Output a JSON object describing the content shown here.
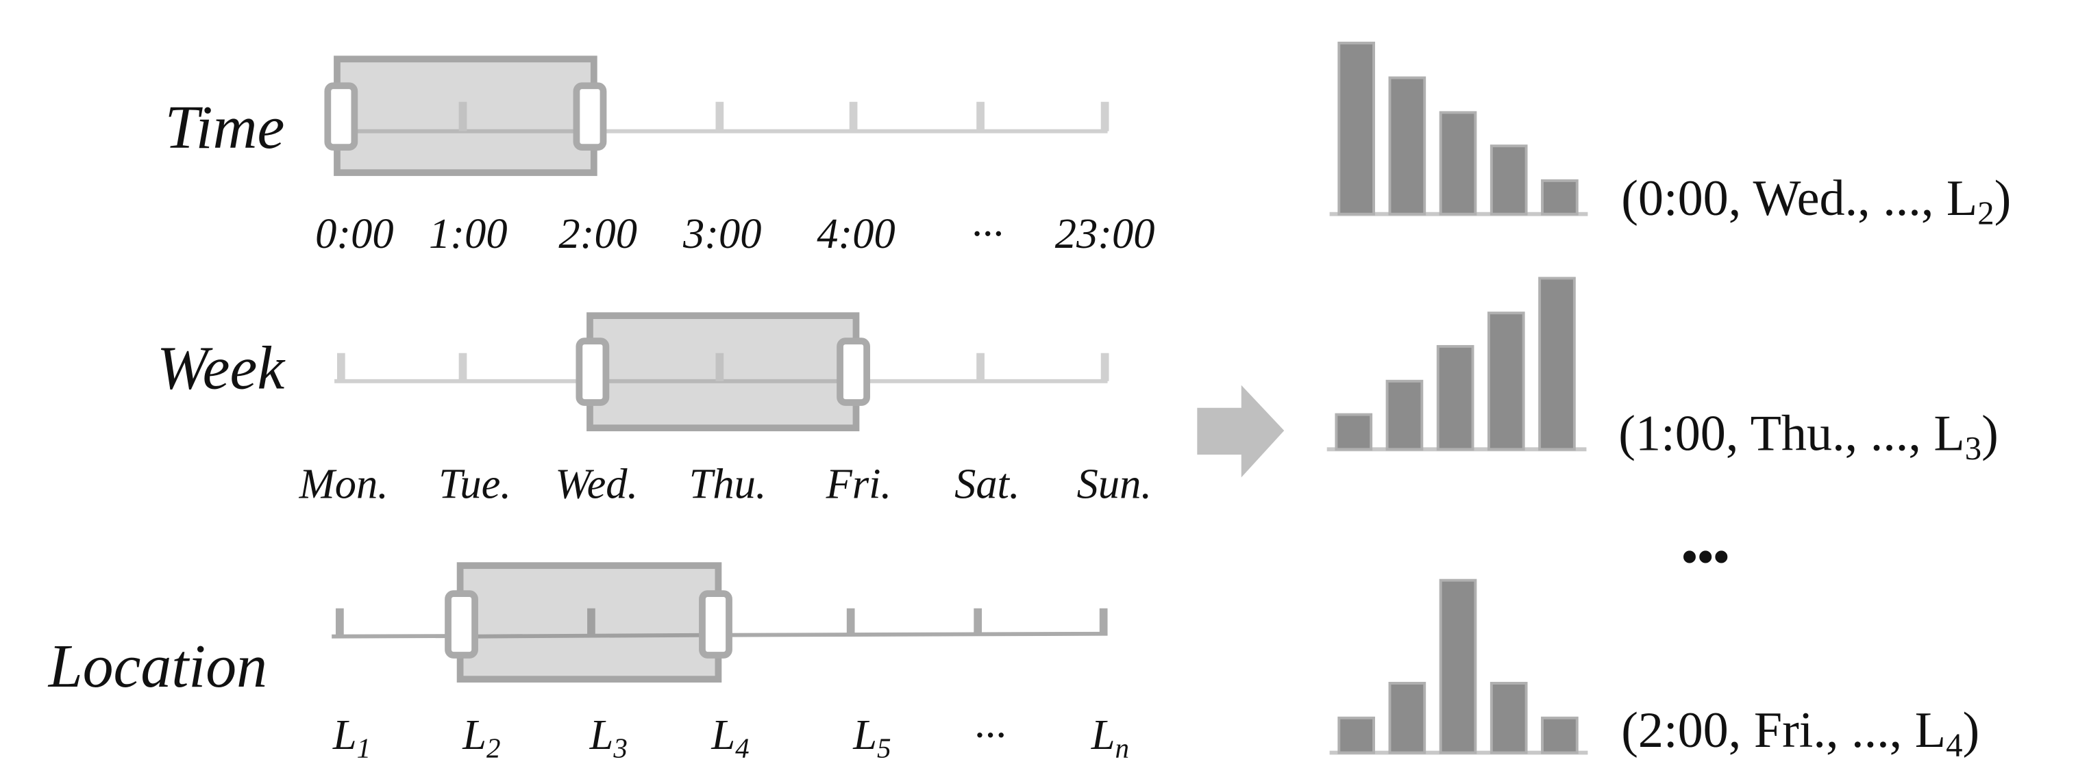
{
  "rows": [
    {
      "label": "Time",
      "ticks": [
        "0:00",
        "1:00",
        "2:00",
        "3:00",
        "4:00",
        "···",
        "23:00"
      ]
    },
    {
      "label": "Week",
      "ticks": [
        "Mon.",
        "Tue.",
        "Wed.",
        "Thu.",
        "Fri.",
        "Sat.",
        "Sun."
      ]
    },
    {
      "label": "Location",
      "ticks": [
        {
          "base": "L",
          "sub": "1"
        },
        {
          "base": "L",
          "sub": "2"
        },
        {
          "base": "L",
          "sub": "3"
        },
        {
          "base": "L",
          "sub": "4"
        },
        {
          "base": "L",
          "sub": "5"
        },
        "···",
        {
          "base": "L",
          "sub": "n"
        }
      ]
    }
  ],
  "outputs": [
    {
      "text": "(0:00, Wed., ..., L",
      "sub": "2",
      "close": ")"
    },
    {
      "text": "(1:00, Thu., ...,  L",
      "sub": "3",
      "close": ")"
    },
    {
      "text": "(2:00, Fri., ...,  L",
      "sub": "4",
      "close": ")"
    }
  ],
  "ellipsis": "•••"
}
